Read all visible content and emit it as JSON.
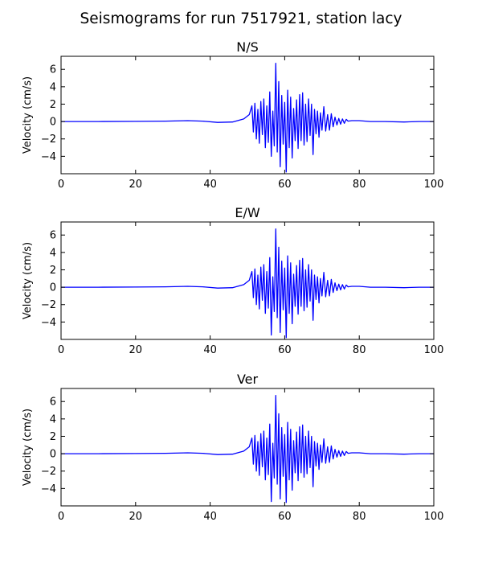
{
  "figure": {
    "title": "Seismograms for run 7517921, station lacy"
  },
  "chart_data": [
    {
      "type": "line",
      "title": "N/S",
      "xlabel": "",
      "ylabel": "Velocity (cm/s)",
      "xlim": [
        0,
        100
      ],
      "ylim": [
        -6,
        7.5
      ],
      "xticks": [
        0,
        20,
        40,
        60,
        80,
        100
      ],
      "yticks": [
        -4,
        -2,
        0,
        2,
        4,
        6
      ],
      "grid": false,
      "line_color": "#0000ff",
      "series": [
        {
          "x": [
            0,
            10,
            20,
            28,
            34,
            38,
            42,
            46,
            49,
            50.5,
            51.2,
            51.6,
            52,
            52.4,
            52.8,
            53.2,
            53.6,
            54,
            54.4,
            54.8,
            55.2,
            55.6,
            56,
            56.4,
            56.8,
            57.2,
            57.6,
            58,
            58.4,
            58.8,
            59.2,
            59.6,
            60,
            60.4,
            60.8,
            61.2,
            61.6,
            62,
            62.4,
            62.8,
            63.2,
            63.6,
            64,
            64.4,
            64.8,
            65.2,
            65.6,
            66,
            66.4,
            66.8,
            67.2,
            67.6,
            68,
            68.4,
            68.8,
            69.2,
            69.6,
            70,
            70.5,
            71,
            71.5,
            72,
            72.5,
            73,
            73.5,
            74,
            74.5,
            75,
            75.5,
            76,
            76.5,
            77,
            78,
            80,
            83,
            87,
            92,
            96,
            100
          ],
          "y": [
            0,
            0,
            0.02,
            0.05,
            0.1,
            0.05,
            -0.1,
            -0.05,
            0.3,
            0.8,
            1.8,
            -1.2,
            2.1,
            -2.0,
            1.4,
            -2.5,
            2.3,
            -1.5,
            2.6,
            -3.0,
            1.8,
            -2.4,
            3.4,
            -4.0,
            1.2,
            -2.8,
            6.7,
            -3.5,
            4.6,
            -5.2,
            3.0,
            -2.6,
            2.2,
            -5.8,
            3.6,
            -3.0,
            2.8,
            -4.2,
            1.5,
            -2.2,
            2.5,
            -3.1,
            3.1,
            -2.2,
            3.3,
            -2.7,
            2.0,
            -2.3,
            2.6,
            -1.6,
            2.0,
            -3.8,
            1.4,
            -1.4,
            1.2,
            -1.8,
            1.0,
            -1.0,
            1.7,
            -1.1,
            0.8,
            -1.0,
            0.9,
            -0.6,
            0.5,
            -0.4,
            0.35,
            -0.3,
            0.3,
            -0.2,
            0.25,
            0.05,
            0.1,
            0.1,
            0,
            0,
            -0.05,
            0,
            0
          ]
        }
      ]
    },
    {
      "type": "line",
      "title": "E/W",
      "xlabel": "",
      "ylabel": "Velocity (cm/s)",
      "xlim": [
        0,
        100
      ],
      "ylim": [
        -6,
        7.5
      ],
      "xticks": [
        0,
        20,
        40,
        60,
        80,
        100
      ],
      "yticks": [
        -4,
        -2,
        0,
        2,
        4,
        6
      ],
      "grid": false,
      "line_color": "#0000ff",
      "series": [
        {
          "x": [
            0,
            10,
            20,
            28,
            34,
            38,
            42,
            46,
            49,
            50.5,
            51.2,
            51.6,
            52,
            52.4,
            52.8,
            53.2,
            53.6,
            54,
            54.4,
            54.8,
            55.2,
            55.6,
            56,
            56.4,
            56.8,
            57.2,
            57.6,
            58,
            58.4,
            58.8,
            59.2,
            59.6,
            60,
            60.4,
            60.8,
            61.2,
            61.6,
            62,
            62.4,
            62.8,
            63.2,
            63.6,
            64,
            64.4,
            64.8,
            65.2,
            65.6,
            66,
            66.4,
            66.8,
            67.2,
            67.6,
            68,
            68.4,
            68.8,
            69.2,
            69.6,
            70,
            70.5,
            71,
            71.5,
            72,
            72.5,
            73,
            73.5,
            74,
            74.5,
            75,
            75.5,
            76,
            76.5,
            77,
            78,
            80,
            83,
            87,
            92,
            96,
            100
          ],
          "y": [
            0,
            0,
            0.02,
            0.05,
            0.1,
            0.05,
            -0.1,
            -0.05,
            0.3,
            0.8,
            1.8,
            -1.2,
            2.1,
            -2.0,
            1.4,
            -2.5,
            2.3,
            -1.5,
            2.6,
            -3.0,
            1.8,
            -2.4,
            3.4,
            -5.5,
            1.2,
            -2.8,
            6.7,
            -3.5,
            4.6,
            -5.2,
            3.0,
            -2.6,
            2.2,
            -5.8,
            3.6,
            -3.0,
            2.8,
            -4.2,
            1.5,
            -2.2,
            2.5,
            -3.1,
            3.1,
            -2.2,
            3.3,
            -2.7,
            2.0,
            -2.3,
            2.6,
            -1.6,
            2.0,
            -3.8,
            1.4,
            -1.4,
            1.2,
            -1.8,
            1.0,
            -1.0,
            1.7,
            -1.1,
            0.8,
            -1.0,
            0.9,
            -0.6,
            0.5,
            -0.4,
            0.35,
            -0.3,
            0.3,
            -0.2,
            0.25,
            0.05,
            0.1,
            0.1,
            0,
            0,
            -0.05,
            0,
            0
          ]
        }
      ]
    },
    {
      "type": "line",
      "title": "Ver",
      "xlabel": "",
      "ylabel": "Velocity (cm/s)",
      "xlim": [
        0,
        100
      ],
      "ylim": [
        -6,
        7.5
      ],
      "xticks": [
        0,
        20,
        40,
        60,
        80,
        100
      ],
      "yticks": [
        -4,
        -2,
        0,
        2,
        4,
        6
      ],
      "grid": false,
      "line_color": "#0000ff",
      "series": [
        {
          "x": [
            0,
            10,
            20,
            28,
            34,
            38,
            42,
            46,
            49,
            50.5,
            51.2,
            51.6,
            52,
            52.4,
            52.8,
            53.2,
            53.6,
            54,
            54.4,
            54.8,
            55.2,
            55.6,
            56,
            56.4,
            56.8,
            57.2,
            57.6,
            58,
            58.4,
            58.8,
            59.2,
            59.6,
            60,
            60.4,
            60.8,
            61.2,
            61.6,
            62,
            62.4,
            62.8,
            63.2,
            63.6,
            64,
            64.4,
            64.8,
            65.2,
            65.6,
            66,
            66.4,
            66.8,
            67.2,
            67.6,
            68,
            68.4,
            68.8,
            69.2,
            69.6,
            70,
            70.5,
            71,
            71.5,
            72,
            72.5,
            73,
            73.5,
            74,
            74.5,
            75,
            75.5,
            76,
            76.5,
            77,
            78,
            80,
            83,
            87,
            92,
            96,
            100
          ],
          "y": [
            0,
            0,
            0.02,
            0.05,
            0.1,
            0.05,
            -0.1,
            -0.05,
            0.3,
            0.8,
            1.8,
            -1.2,
            2.1,
            -2.0,
            1.4,
            -2.5,
            2.3,
            -1.5,
            2.6,
            -3.0,
            1.8,
            -2.4,
            3.4,
            -5.5,
            1.2,
            -2.8,
            6.7,
            -3.5,
            4.6,
            -5.2,
            3.0,
            -2.6,
            2.2,
            -5.6,
            3.6,
            -3.0,
            2.8,
            -4.2,
            1.5,
            -2.2,
            2.5,
            -3.1,
            3.1,
            -2.2,
            3.3,
            -2.7,
            2.0,
            -2.3,
            2.6,
            -1.6,
            2.0,
            -3.8,
            1.4,
            -1.4,
            1.2,
            -1.8,
            1.0,
            -1.0,
            1.7,
            -1.1,
            0.8,
            -1.0,
            0.9,
            -0.6,
            0.5,
            -0.4,
            0.35,
            -0.3,
            0.3,
            -0.2,
            0.25,
            0.05,
            0.1,
            0.1,
            0,
            0,
            -0.05,
            0,
            0
          ]
        }
      ]
    }
  ]
}
